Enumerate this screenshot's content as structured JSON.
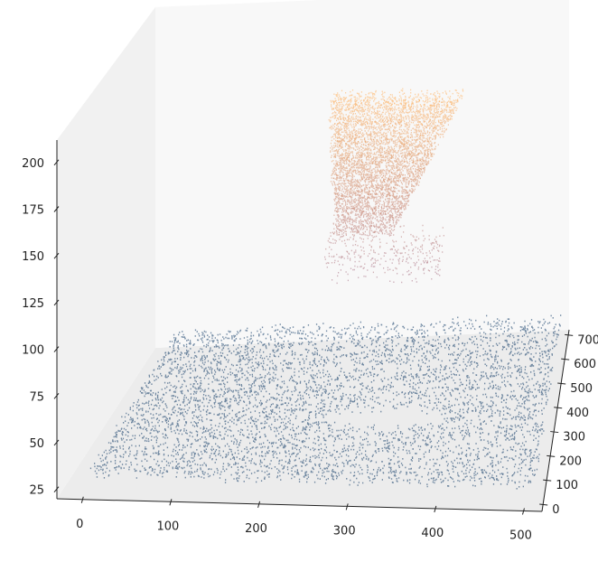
{
  "chart_data": {
    "type": "scatter",
    "projection": "3d",
    "title": "",
    "xlabel": "",
    "ylabel": "",
    "zlabel": "",
    "grid": false,
    "legend": "none",
    "xlim": [
      -30,
      520
    ],
    "ylim": [
      -30,
      720
    ],
    "zlim": [
      20,
      212
    ],
    "x_ticks": [
      0,
      100,
      200,
      300,
      400,
      500
    ],
    "y_ticks": [
      0,
      100,
      200,
      300,
      400,
      500,
      600,
      700
    ],
    "z_ticks": [
      25,
      50,
      75,
      100,
      125,
      150,
      175,
      200
    ],
    "colors": {
      "ground": "#0a3563",
      "object_high": "#ffa94d",
      "object_low": "#9e6075",
      "pane_back": "#f8f8f8",
      "pane_left": "#f1f1f1",
      "pane_floor": "#ececec"
    },
    "series": [
      {
        "description_id": "ground",
        "x_range": [
          0,
          510
        ],
        "y_range": [
          0,
          700
        ],
        "z_range": [
          27,
          33
        ],
        "hole": {
          "x_center": 315,
          "y_center": 280,
          "x_radius": 72,
          "y_radius": 48
        }
      },
      {
        "description_id": "object",
        "x_range": [
          245,
          385
        ],
        "y_range": [
          240,
          330
        ],
        "z_range": [
          130,
          205
        ],
        "falling_points_z_range": [
          108,
          130
        ]
      }
    ]
  }
}
